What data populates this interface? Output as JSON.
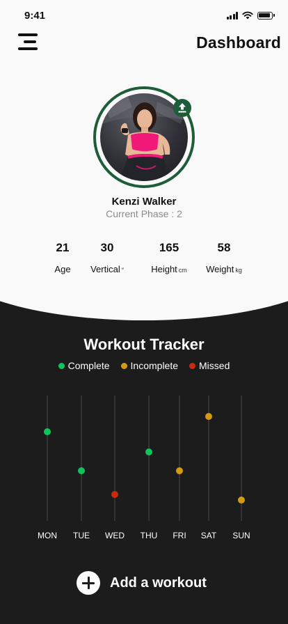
{
  "status": {
    "time": "9:41",
    "icons": [
      "signal-icon",
      "wifi-icon",
      "battery-icon"
    ]
  },
  "header": {
    "menu_icon": "menu-icon",
    "title": "Dashboard"
  },
  "profile": {
    "name": "Kenzi Walker",
    "phase": "Current Phase : 2",
    "upload_icon": "upload-icon",
    "stats": [
      {
        "value": "21",
        "label": "Age",
        "unit": ""
      },
      {
        "value": "30",
        "label": "Vertical",
        "unit": "″"
      },
      {
        "value": "165",
        "label": "Height",
        "unit": "cm"
      },
      {
        "value": "58",
        "label": "Weight",
        "unit": "kg"
      }
    ]
  },
  "tracker": {
    "title": "Workout Tracker",
    "legend": [
      {
        "label": "Complete",
        "color": "#10c45c"
      },
      {
        "label": "Incomplete",
        "color": "#d39a12"
      },
      {
        "label": "Missed",
        "color": "#c92a10"
      }
    ]
  },
  "chart_data": {
    "type": "scatter",
    "title": "Workout Tracker",
    "categories": [
      "MON",
      "TUE",
      "WED",
      "THU",
      "FRI",
      "SAT",
      "SUN"
    ],
    "points": [
      {
        "day": "MON",
        "status": "Complete"
      },
      {
        "day": "TUE",
        "status": "Complete"
      },
      {
        "day": "WED",
        "status": "Missed"
      },
      {
        "day": "THU",
        "status": "Complete"
      },
      {
        "day": "FRI",
        "status": "Incomplete"
      },
      {
        "day": "SAT",
        "status": "Incomplete"
      },
      {
        "day": "SUN",
        "status": "Incomplete"
      }
    ],
    "grid": true
  },
  "actions": {
    "add_workout_label": "Add a workout",
    "add_icon": "plus-icon"
  }
}
